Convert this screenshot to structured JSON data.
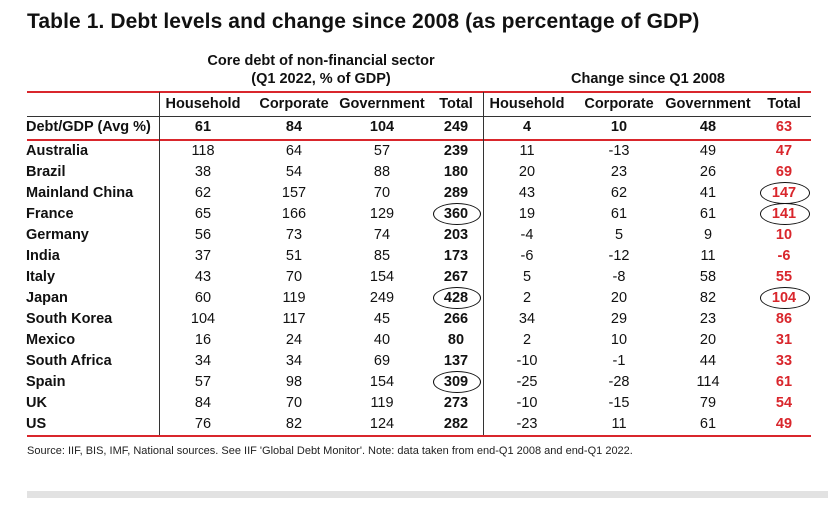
{
  "title": "Table 1. Debt levels and change since 2008 (as percentage of GDP)",
  "group1_line1": "Core debt of non-financial sector",
  "group1_line2": "(Q1 2022, % of GDP)",
  "group2": "Change since Q1 2008",
  "columns": [
    "Household",
    "Corporate",
    "Government",
    "Total",
    "Household",
    "Corporate",
    "Government",
    "Total"
  ],
  "rows": [
    {
      "label": "Debt/GDP (Avg %)",
      "values": [
        "61",
        "84",
        "104",
        "249",
        "4",
        "10",
        "48",
        "63"
      ]
    },
    {
      "label": "Australia",
      "values": [
        "118",
        "64",
        "57",
        "239",
        "11",
        "-13",
        "49",
        "47"
      ]
    },
    {
      "label": "Brazil",
      "values": [
        "38",
        "54",
        "88",
        "180",
        "20",
        "23",
        "26",
        "69"
      ]
    },
    {
      "label": "Mainland China",
      "values": [
        "62",
        "157",
        "70",
        "289",
        "43",
        "62",
        "41",
        "147"
      ]
    },
    {
      "label": "France",
      "values": [
        "65",
        "166",
        "129",
        "360",
        "19",
        "61",
        "61",
        "141"
      ]
    },
    {
      "label": "Germany",
      "values": [
        "56",
        "73",
        "74",
        "203",
        "-4",
        "5",
        "9",
        "10"
      ]
    },
    {
      "label": "India",
      "values": [
        "37",
        "51",
        "85",
        "173",
        "-6",
        "-12",
        "11",
        "-6"
      ]
    },
    {
      "label": "Italy",
      "values": [
        "43",
        "70",
        "154",
        "267",
        "5",
        "-8",
        "58",
        "55"
      ]
    },
    {
      "label": "Japan",
      "values": [
        "60",
        "119",
        "249",
        "428",
        "2",
        "20",
        "82",
        "104"
      ]
    },
    {
      "label": "South Korea",
      "values": [
        "104",
        "117",
        "45",
        "266",
        "34",
        "29",
        "23",
        "86"
      ]
    },
    {
      "label": "Mexico",
      "values": [
        "16",
        "24",
        "40",
        "80",
        "2",
        "10",
        "20",
        "31"
      ]
    },
    {
      "label": "South Africa",
      "values": [
        "34",
        "34",
        "69",
        "137",
        "-10",
        "-1",
        "44",
        "33"
      ]
    },
    {
      "label": "Spain",
      "values": [
        "57",
        "98",
        "154",
        "309",
        "-25",
        "-28",
        "114",
        "61"
      ]
    },
    {
      "label": "UK",
      "values": [
        "84",
        "70",
        "119",
        "273",
        "-10",
        "-15",
        "79",
        "54"
      ]
    },
    {
      "label": "US",
      "values": [
        "76",
        "82",
        "124",
        "282",
        "-23",
        "11",
        "61",
        "49"
      ]
    }
  ],
  "circled": [
    {
      "row": 4,
      "col": 3
    },
    {
      "row": 8,
      "col": 3
    },
    {
      "row": 12,
      "col": 3
    },
    {
      "row": 3,
      "col": 7
    },
    {
      "row": 4,
      "col": 7
    },
    {
      "row": 8,
      "col": 7
    }
  ],
  "note": "Source: IIF, BIS, IMF, National sources. See IIF 'Global Debt Monitor'. Note: data taken from end-Q1 2008 and end-Q1 2022."
}
